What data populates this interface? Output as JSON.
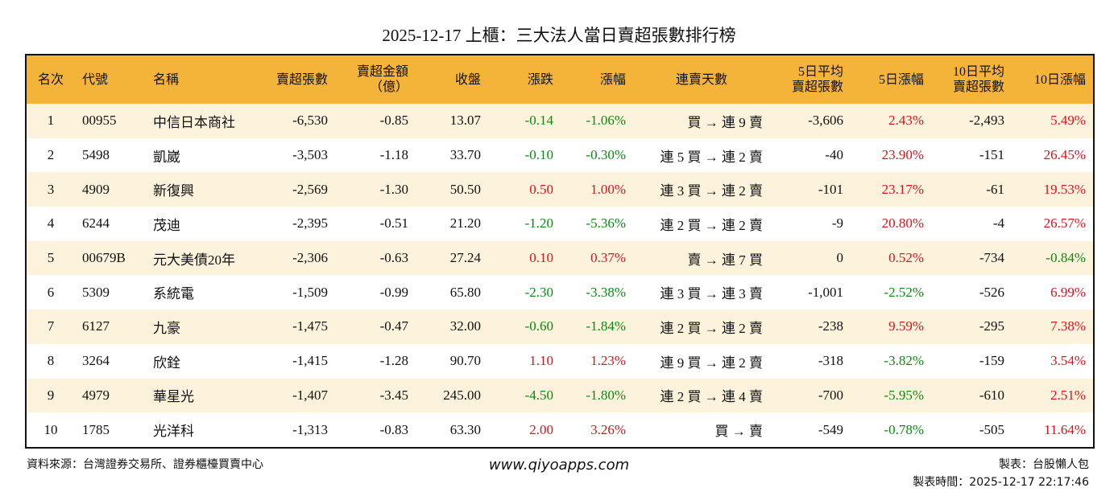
{
  "title": "2025-12-17 上櫃：三大法人當日賣超張數排行榜",
  "table": {
    "headers": [
      "名次",
      "代號",
      "名稱",
      "賣超張數",
      "賣超金額\n（億）",
      "收盤",
      "漲跌",
      "漲幅",
      "連賣天數",
      "5日平均\n賣超張數",
      "5日漲幅",
      "10日平均\n賣超張數",
      "10日漲幅"
    ],
    "rows": [
      [
        "1",
        "00955",
        "中信日本商社",
        "-6,530",
        "-0.85",
        "13.07",
        "-0.14",
        "-1.06%",
        "買 → 連 9 賣",
        "-3,606",
        "2.43%",
        "-2,493",
        "5.49%"
      ],
      [
        "2",
        "5498",
        "凱崴",
        "-3,503",
        "-1.18",
        "33.70",
        "-0.10",
        "-0.30%",
        "連 5 買 → 連 2 賣",
        "-40",
        "23.90%",
        "-151",
        "26.45%"
      ],
      [
        "3",
        "4909",
        "新復興",
        "-2,569",
        "-1.30",
        "50.50",
        "0.50",
        "1.00%",
        "連 3 買 → 連 2 賣",
        "-101",
        "23.17%",
        "-61",
        "19.53%"
      ],
      [
        "4",
        "6244",
        "茂迪",
        "-2,395",
        "-0.51",
        "21.20",
        "-1.20",
        "-5.36%",
        "連 2 買 → 連 2 賣",
        "-9",
        "20.80%",
        "-4",
        "26.57%"
      ],
      [
        "5",
        "00679B",
        "元大美債20年",
        "-2,306",
        "-0.63",
        "27.24",
        "0.10",
        "0.37%",
        "賣 → 連 7 買",
        "0",
        "0.52%",
        "-734",
        "-0.84%"
      ],
      [
        "6",
        "5309",
        "系統電",
        "-1,509",
        "-0.99",
        "65.80",
        "-2.30",
        "-3.38%",
        "連 3 買 → 連 3 賣",
        "-1,001",
        "-2.52%",
        "-526",
        "6.99%"
      ],
      [
        "7",
        "6127",
        "九豪",
        "-1,475",
        "-0.47",
        "32.00",
        "-0.60",
        "-1.84%",
        "連 2 買 → 連 2 賣",
        "-238",
        "9.59%",
        "-295",
        "7.38%"
      ],
      [
        "8",
        "3264",
        "欣銓",
        "-1,415",
        "-1.28",
        "90.70",
        "1.10",
        "1.23%",
        "連 9 買 → 連 2 賣",
        "-318",
        "-3.82%",
        "-159",
        "3.54%"
      ],
      [
        "9",
        "4979",
        "華星光",
        "-1,407",
        "-3.45",
        "245.00",
        "-4.50",
        "-1.80%",
        "連 2 買 → 連 4 賣",
        "-700",
        "-5.95%",
        "-610",
        "2.51%"
      ],
      [
        "10",
        "1785",
        "光洋科",
        "-1,313",
        "-0.83",
        "63.30",
        "2.00",
        "3.26%",
        "買 → 賣",
        "-549",
        "-0.78%",
        "-505",
        "11.64%"
      ]
    ]
  },
  "footer": {
    "source": "資料來源：台灣證券交易所、證券櫃檯買賣中心",
    "site": "www.qiyoapps.com",
    "maker": "製表：台股懶人包",
    "time": "製表時間：2025-12-17 22:17:46"
  }
}
